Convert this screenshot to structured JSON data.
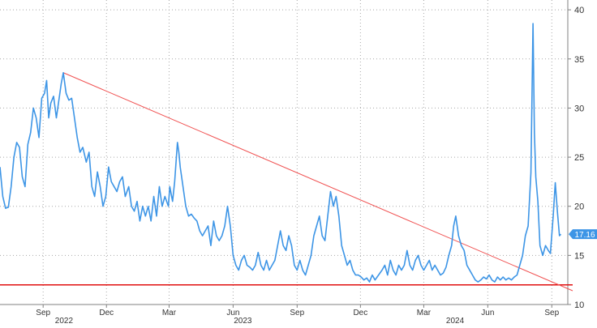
{
  "chart_data": {
    "type": "line",
    "title": "",
    "xlabel": "",
    "ylabel": "",
    "ylim": [
      10,
      41
    ],
    "y_ticks": [
      10,
      15,
      20,
      25,
      30,
      35,
      40
    ],
    "x_month_ticks": [
      {
        "label": "Sep",
        "date": "2022-09-01"
      },
      {
        "label": "Dec",
        "date": "2022-12-01"
      },
      {
        "label": "Mar",
        "date": "2023-03-01"
      },
      {
        "label": "Jun",
        "date": "2023-06-01"
      },
      {
        "label": "Sep",
        "date": "2023-09-01"
      },
      {
        "label": "Dec",
        "date": "2023-12-01"
      },
      {
        "label": "Mar",
        "date": "2024-03-01"
      },
      {
        "label": "Jun",
        "date": "2024-06-01"
      },
      {
        "label": "Sep",
        "date": "2024-09-01"
      }
    ],
    "x_year_labels": [
      {
        "label": "2022",
        "date": "2022-10-01"
      },
      {
        "label": "2023",
        "date": "2023-06-15"
      },
      {
        "label": "2024",
        "date": "2024-04-15"
      }
    ],
    "grid": true,
    "colors": {
      "series": "#3d95e6",
      "trendline": "#f05050",
      "support": "#e01010",
      "label_bg": "#3d95e6"
    },
    "last_value_label": "17.16",
    "series": [
      {
        "points": [
          [
            "2022-07-01",
            24
          ],
          [
            "2022-07-05",
            21
          ],
          [
            "2022-07-09",
            19.8
          ],
          [
            "2022-07-13",
            19.9
          ],
          [
            "2022-07-17",
            22
          ],
          [
            "2022-07-21",
            25
          ],
          [
            "2022-07-25",
            26.5
          ],
          [
            "2022-07-29",
            26
          ],
          [
            "2022-08-02",
            23
          ],
          [
            "2022-08-06",
            22
          ],
          [
            "2022-08-10",
            26.3
          ],
          [
            "2022-08-14",
            27.5
          ],
          [
            "2022-08-18",
            30
          ],
          [
            "2022-08-22",
            29
          ],
          [
            "2022-08-26",
            27
          ],
          [
            "2022-08-30",
            31
          ],
          [
            "2022-09-03",
            31.5
          ],
          [
            "2022-09-06",
            32.8
          ],
          [
            "2022-09-09",
            29
          ],
          [
            "2022-09-12",
            30.5
          ],
          [
            "2022-09-16",
            31.2
          ],
          [
            "2022-09-20",
            29
          ],
          [
            "2022-09-23",
            30.5
          ],
          [
            "2022-09-27",
            32.5
          ],
          [
            "2022-09-30",
            33.6
          ],
          [
            "2022-10-04",
            31.5
          ],
          [
            "2022-10-08",
            30.8
          ],
          [
            "2022-10-12",
            31
          ],
          [
            "2022-10-16",
            29
          ],
          [
            "2022-10-20",
            27
          ],
          [
            "2022-10-24",
            25.5
          ],
          [
            "2022-10-28",
            26
          ],
          [
            "2022-11-02",
            24.5
          ],
          [
            "2022-11-06",
            25.5
          ],
          [
            "2022-11-10",
            22
          ],
          [
            "2022-11-14",
            21
          ],
          [
            "2022-11-18",
            23.5
          ],
          [
            "2022-11-22",
            22
          ],
          [
            "2022-11-26",
            20
          ],
          [
            "2022-11-30",
            21
          ],
          [
            "2022-12-04",
            24
          ],
          [
            "2022-12-08",
            22.5
          ],
          [
            "2022-12-12",
            22
          ],
          [
            "2022-12-16",
            21.5
          ],
          [
            "2022-12-20",
            22.5
          ],
          [
            "2022-12-24",
            23
          ],
          [
            "2022-12-28",
            21
          ],
          [
            "2023-01-02",
            22
          ],
          [
            "2023-01-06",
            20
          ],
          [
            "2023-01-10",
            19.5
          ],
          [
            "2023-01-14",
            20.5
          ],
          [
            "2023-01-18",
            18.5
          ],
          [
            "2023-01-22",
            20
          ],
          [
            "2023-01-26",
            19
          ],
          [
            "2023-01-30",
            20
          ],
          [
            "2023-02-03",
            18.5
          ],
          [
            "2023-02-07",
            21
          ],
          [
            "2023-02-11",
            19
          ],
          [
            "2023-02-15",
            22
          ],
          [
            "2023-02-19",
            20
          ],
          [
            "2023-02-23",
            21
          ],
          [
            "2023-02-28",
            20
          ],
          [
            "2023-03-02",
            22
          ],
          [
            "2023-03-06",
            20.5
          ],
          [
            "2023-03-09",
            22.5
          ],
          [
            "2023-03-13",
            26.5
          ],
          [
            "2023-03-15",
            25.5
          ],
          [
            "2023-03-17",
            24
          ],
          [
            "2023-03-21",
            22
          ],
          [
            "2023-03-25",
            20
          ],
          [
            "2023-03-29",
            19
          ],
          [
            "2023-04-02",
            19.2
          ],
          [
            "2023-04-06",
            18.8
          ],
          [
            "2023-04-10",
            18.5
          ],
          [
            "2023-04-14",
            17.5
          ],
          [
            "2023-04-18",
            17
          ],
          [
            "2023-04-22",
            17.5
          ],
          [
            "2023-04-26",
            18
          ],
          [
            "2023-04-30",
            16
          ],
          [
            "2023-05-04",
            18.5
          ],
          [
            "2023-05-08",
            17
          ],
          [
            "2023-05-12",
            16.5
          ],
          [
            "2023-05-16",
            17
          ],
          [
            "2023-05-20",
            18
          ],
          [
            "2023-05-24",
            20
          ],
          [
            "2023-05-28",
            18
          ],
          [
            "2023-06-01",
            15
          ],
          [
            "2023-06-05",
            14
          ],
          [
            "2023-06-09",
            13.5
          ],
          [
            "2023-06-13",
            14.5
          ],
          [
            "2023-06-17",
            15
          ],
          [
            "2023-06-21",
            14
          ],
          [
            "2023-06-25",
            13.8
          ],
          [
            "2023-06-29",
            13.5
          ],
          [
            "2023-07-03",
            14
          ],
          [
            "2023-07-07",
            15.3
          ],
          [
            "2023-07-11",
            14
          ],
          [
            "2023-07-15",
            13.5
          ],
          [
            "2023-07-19",
            14.5
          ],
          [
            "2023-07-23",
            13.5
          ],
          [
            "2023-07-27",
            14
          ],
          [
            "2023-07-31",
            14.5
          ],
          [
            "2023-08-04",
            16
          ],
          [
            "2023-08-08",
            17.5
          ],
          [
            "2023-08-12",
            16
          ],
          [
            "2023-08-16",
            15.5
          ],
          [
            "2023-08-20",
            17
          ],
          [
            "2023-08-24",
            16
          ],
          [
            "2023-08-28",
            14
          ],
          [
            "2023-09-01",
            13.5
          ],
          [
            "2023-09-05",
            14.5
          ],
          [
            "2023-09-09",
            13.5
          ],
          [
            "2023-09-13",
            13
          ],
          [
            "2023-09-17",
            14
          ],
          [
            "2023-09-21",
            15
          ],
          [
            "2023-09-25",
            17
          ],
          [
            "2023-09-29",
            18
          ],
          [
            "2023-10-03",
            19
          ],
          [
            "2023-10-07",
            17
          ],
          [
            "2023-10-11",
            16.5
          ],
          [
            "2023-10-15",
            19
          ],
          [
            "2023-10-19",
            21.5
          ],
          [
            "2023-10-23",
            20
          ],
          [
            "2023-10-27",
            21
          ],
          [
            "2023-10-31",
            19
          ],
          [
            "2023-11-04",
            16
          ],
          [
            "2023-11-08",
            15
          ],
          [
            "2023-11-12",
            14
          ],
          [
            "2023-11-16",
            14.5
          ],
          [
            "2023-11-20",
            13.5
          ],
          [
            "2023-11-24",
            13
          ],
          [
            "2023-11-28",
            13
          ],
          [
            "2023-12-02",
            12.8
          ],
          [
            "2023-12-06",
            12.5
          ],
          [
            "2023-12-10",
            12.7
          ],
          [
            "2023-12-14",
            12.3
          ],
          [
            "2023-12-18",
            13
          ],
          [
            "2023-12-22",
            12.5
          ],
          [
            "2023-12-27",
            13
          ],
          [
            "2024-01-01",
            13.5
          ],
          [
            "2024-01-05",
            14
          ],
          [
            "2024-01-09",
            13
          ],
          [
            "2024-01-13",
            14.5
          ],
          [
            "2024-01-17",
            13.5
          ],
          [
            "2024-01-21",
            13
          ],
          [
            "2024-01-25",
            14
          ],
          [
            "2024-01-29",
            13.5
          ],
          [
            "2024-02-02",
            14
          ],
          [
            "2024-02-06",
            15.5
          ],
          [
            "2024-02-10",
            14
          ],
          [
            "2024-02-14",
            13.5
          ],
          [
            "2024-02-18",
            14.5
          ],
          [
            "2024-02-22",
            15
          ],
          [
            "2024-02-26",
            14
          ],
          [
            "2024-03-01",
            13.5
          ],
          [
            "2024-03-05",
            14
          ],
          [
            "2024-03-09",
            14.5
          ],
          [
            "2024-03-13",
            13.5
          ],
          [
            "2024-03-17",
            14
          ],
          [
            "2024-03-21",
            13.5
          ],
          [
            "2024-03-25",
            13
          ],
          [
            "2024-03-29",
            13.2
          ],
          [
            "2024-04-02",
            13.8
          ],
          [
            "2024-04-06",
            15
          ],
          [
            "2024-04-10",
            16
          ],
          [
            "2024-04-13",
            18
          ],
          [
            "2024-04-16",
            19
          ],
          [
            "2024-04-20",
            17
          ],
          [
            "2024-04-24",
            16
          ],
          [
            "2024-04-28",
            15.5
          ],
          [
            "2024-05-02",
            14
          ],
          [
            "2024-05-06",
            13.5
          ],
          [
            "2024-05-10",
            13
          ],
          [
            "2024-05-14",
            12.5
          ],
          [
            "2024-05-18",
            12.3
          ],
          [
            "2024-05-22",
            12.5
          ],
          [
            "2024-05-26",
            12.8
          ],
          [
            "2024-05-30",
            12.6
          ],
          [
            "2024-06-03",
            13
          ],
          [
            "2024-06-07",
            12.5
          ],
          [
            "2024-06-11",
            12.3
          ],
          [
            "2024-06-15",
            12.8
          ],
          [
            "2024-06-19",
            12.5
          ],
          [
            "2024-06-23",
            12.8
          ],
          [
            "2024-06-27",
            12.5
          ],
          [
            "2024-07-01",
            12.7
          ],
          [
            "2024-07-05",
            12.5
          ],
          [
            "2024-07-09",
            12.8
          ],
          [
            "2024-07-13",
            13
          ],
          [
            "2024-07-17",
            14
          ],
          [
            "2024-07-21",
            15
          ],
          [
            "2024-07-25",
            17
          ],
          [
            "2024-07-29",
            18
          ],
          [
            "2024-08-02",
            23.4
          ],
          [
            "2024-08-05",
            38.6
          ],
          [
            "2024-08-07",
            27.5
          ],
          [
            "2024-08-09",
            23
          ],
          [
            "2024-08-12",
            20.5
          ],
          [
            "2024-08-15",
            16
          ],
          [
            "2024-08-19",
            15
          ],
          [
            "2024-08-23",
            16
          ],
          [
            "2024-08-27",
            15.5
          ],
          [
            "2024-08-30",
            15.2
          ],
          [
            "2024-09-03",
            19
          ],
          [
            "2024-09-06",
            22.4
          ],
          [
            "2024-09-09",
            19.5
          ],
          [
            "2024-09-12",
            17
          ],
          [
            "2024-09-14",
            17.16
          ]
        ]
      },
      {
        "points": [
          [
            "2022-09-30",
            33.6
          ],
          [
            "2024-10-01",
            11.4
          ]
        ]
      },
      {
        "points": [
          [
            "2022-06-15",
            12
          ],
          [
            "2024-10-01",
            12
          ]
        ]
      }
    ]
  }
}
